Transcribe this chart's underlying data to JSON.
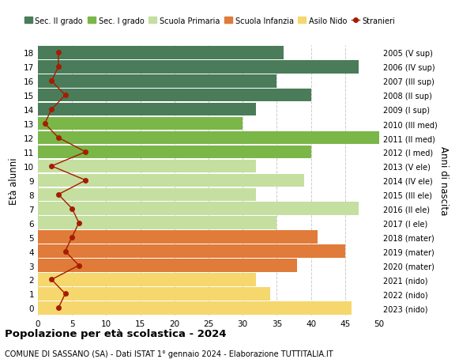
{
  "ages": [
    18,
    17,
    16,
    15,
    14,
    13,
    12,
    11,
    10,
    9,
    8,
    7,
    6,
    5,
    4,
    3,
    2,
    1,
    0
  ],
  "right_labels": [
    "2005 (V sup)",
    "2006 (IV sup)",
    "2007 (III sup)",
    "2008 (II sup)",
    "2009 (I sup)",
    "2010 (III med)",
    "2011 (II med)",
    "2012 (I med)",
    "2013 (V ele)",
    "2014 (IV ele)",
    "2015 (III ele)",
    "2016 (II ele)",
    "2017 (I ele)",
    "2018 (mater)",
    "2019 (mater)",
    "2020 (mater)",
    "2021 (nido)",
    "2022 (nido)",
    "2023 (nido)"
  ],
  "bar_values": [
    36,
    47,
    35,
    40,
    32,
    30,
    50,
    40,
    32,
    39,
    32,
    47,
    35,
    41,
    45,
    38,
    32,
    34,
    46
  ],
  "bar_colors": [
    "#4a7c59",
    "#4a7c59",
    "#4a7c59",
    "#4a7c59",
    "#4a7c59",
    "#7ab648",
    "#7ab648",
    "#7ab648",
    "#c5dfa0",
    "#c5dfa0",
    "#c5dfa0",
    "#c5dfa0",
    "#c5dfa0",
    "#e07b39",
    "#e07b39",
    "#e07b39",
    "#f5d76e",
    "#f5d76e",
    "#f5d76e"
  ],
  "stranieri_values": [
    3,
    3,
    2,
    4,
    2,
    1,
    3,
    7,
    2,
    7,
    3,
    5,
    6,
    5,
    4,
    6,
    2,
    4,
    3
  ],
  "legend_labels": [
    "Sec. II grado",
    "Sec. I grado",
    "Scuola Primaria",
    "Scuola Infanzia",
    "Asilo Nido",
    "Stranieri"
  ],
  "legend_colors": [
    "#4a7c59",
    "#7ab648",
    "#c5dfa0",
    "#e07b39",
    "#f5d76e",
    "#a61c00"
  ],
  "title": "Popolazione per età scolastica - 2024",
  "subtitle": "COMUNE DI SASSANO (SA) - Dati ISTAT 1° gennaio 2024 - Elaborazione TUTTITALIA.IT",
  "ylabel_left": "Età alunni",
  "ylabel_right": "Anni di nascita",
  "xlim": [
    0,
    50
  ],
  "background_color": "#ffffff",
  "grid_color": "#cccccc",
  "stranieri_color": "#a61c00",
  "bar_height": 0.92
}
